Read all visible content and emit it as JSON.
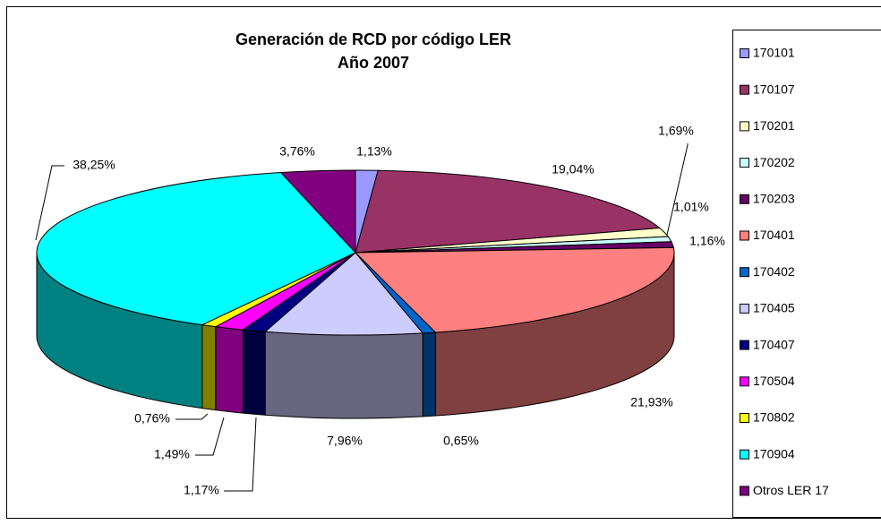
{
  "chart_data": {
    "type": "pie",
    "title": "Generación de RCD por código LER",
    "subtitle": "Año 2007",
    "categories": [
      "170101",
      "170107",
      "170201",
      "170202",
      "170203",
      "170401",
      "170402",
      "170405",
      "170407",
      "170504",
      "170802",
      "170904",
      "Otros LER 17"
    ],
    "values": [
      1.13,
      19.04,
      1.69,
      1.01,
      1.16,
      21.93,
      0.65,
      7.96,
      1.17,
      1.49,
      0.76,
      38.25,
      3.76
    ],
    "value_labels": [
      "1,13%",
      "19,04%",
      "1,69%",
      "1,01%",
      "1,16%",
      "21,93%",
      "0,65%",
      "7,96%",
      "1,17%",
      "1,49%",
      "0,76%",
      "38,25%",
      "3,76%"
    ],
    "colors": [
      "#9999ff",
      "#993366",
      "#ffffcc",
      "#ccffff",
      "#660066",
      "#ff8080",
      "#0066cc",
      "#ccccff",
      "#000080",
      "#ff00ff",
      "#ffff00",
      "#00ffff",
      "#800080"
    ],
    "legend": "right"
  }
}
